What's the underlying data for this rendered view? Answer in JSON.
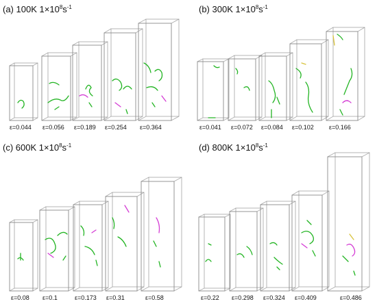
{
  "colors": {
    "box_edge": "#8a8a8a",
    "dislocation_primary": "#22b422",
    "dislocation_secondary": "#d43bd4",
    "dislocation_tertiary": "#d8c23a",
    "background": "#ffffff"
  },
  "panels": [
    {
      "label": "(a)",
      "temperature": "100K",
      "rate_coeff": "1",
      "times": "×",
      "rate_base": "10",
      "rate_exp": "8",
      "rate_unit": "s",
      "rate_unit_exp": "-1",
      "strains": [
        "ε=0.044",
        "ε=0.056",
        "ε=0.189",
        "ε=0.254",
        "ε=0.364"
      ]
    },
    {
      "label": "(b)",
      "temperature": "300K",
      "rate_coeff": "1",
      "times": "×",
      "rate_base": "10",
      "rate_exp": "8",
      "rate_unit": "s",
      "rate_unit_exp": "-1",
      "strains": [
        "ε=0.041",
        "ε=0.072",
        "ε=0.084",
        "ε=0.102",
        "ε=0.166"
      ]
    },
    {
      "label": "(c)",
      "temperature": "600K",
      "rate_coeff": "1",
      "times": "×",
      "rate_base": "10",
      "rate_exp": "8",
      "rate_unit": "s",
      "rate_unit_exp": "-1",
      "strains": [
        "ε=0.08",
        "ε=0.1",
        "ε=0.173",
        "ε=0.31",
        "ε=0.58"
      ]
    },
    {
      "label": "(d)",
      "temperature": "800K",
      "rate_coeff": "1",
      "times": "×",
      "rate_base": "10",
      "rate_exp": "8",
      "rate_unit": "s",
      "rate_unit_exp": "-1",
      "strains": [
        "ε=0.22",
        "ε=0.298",
        "ε=0.324",
        "ε=0.409",
        "ε=0.486"
      ]
    }
  ]
}
